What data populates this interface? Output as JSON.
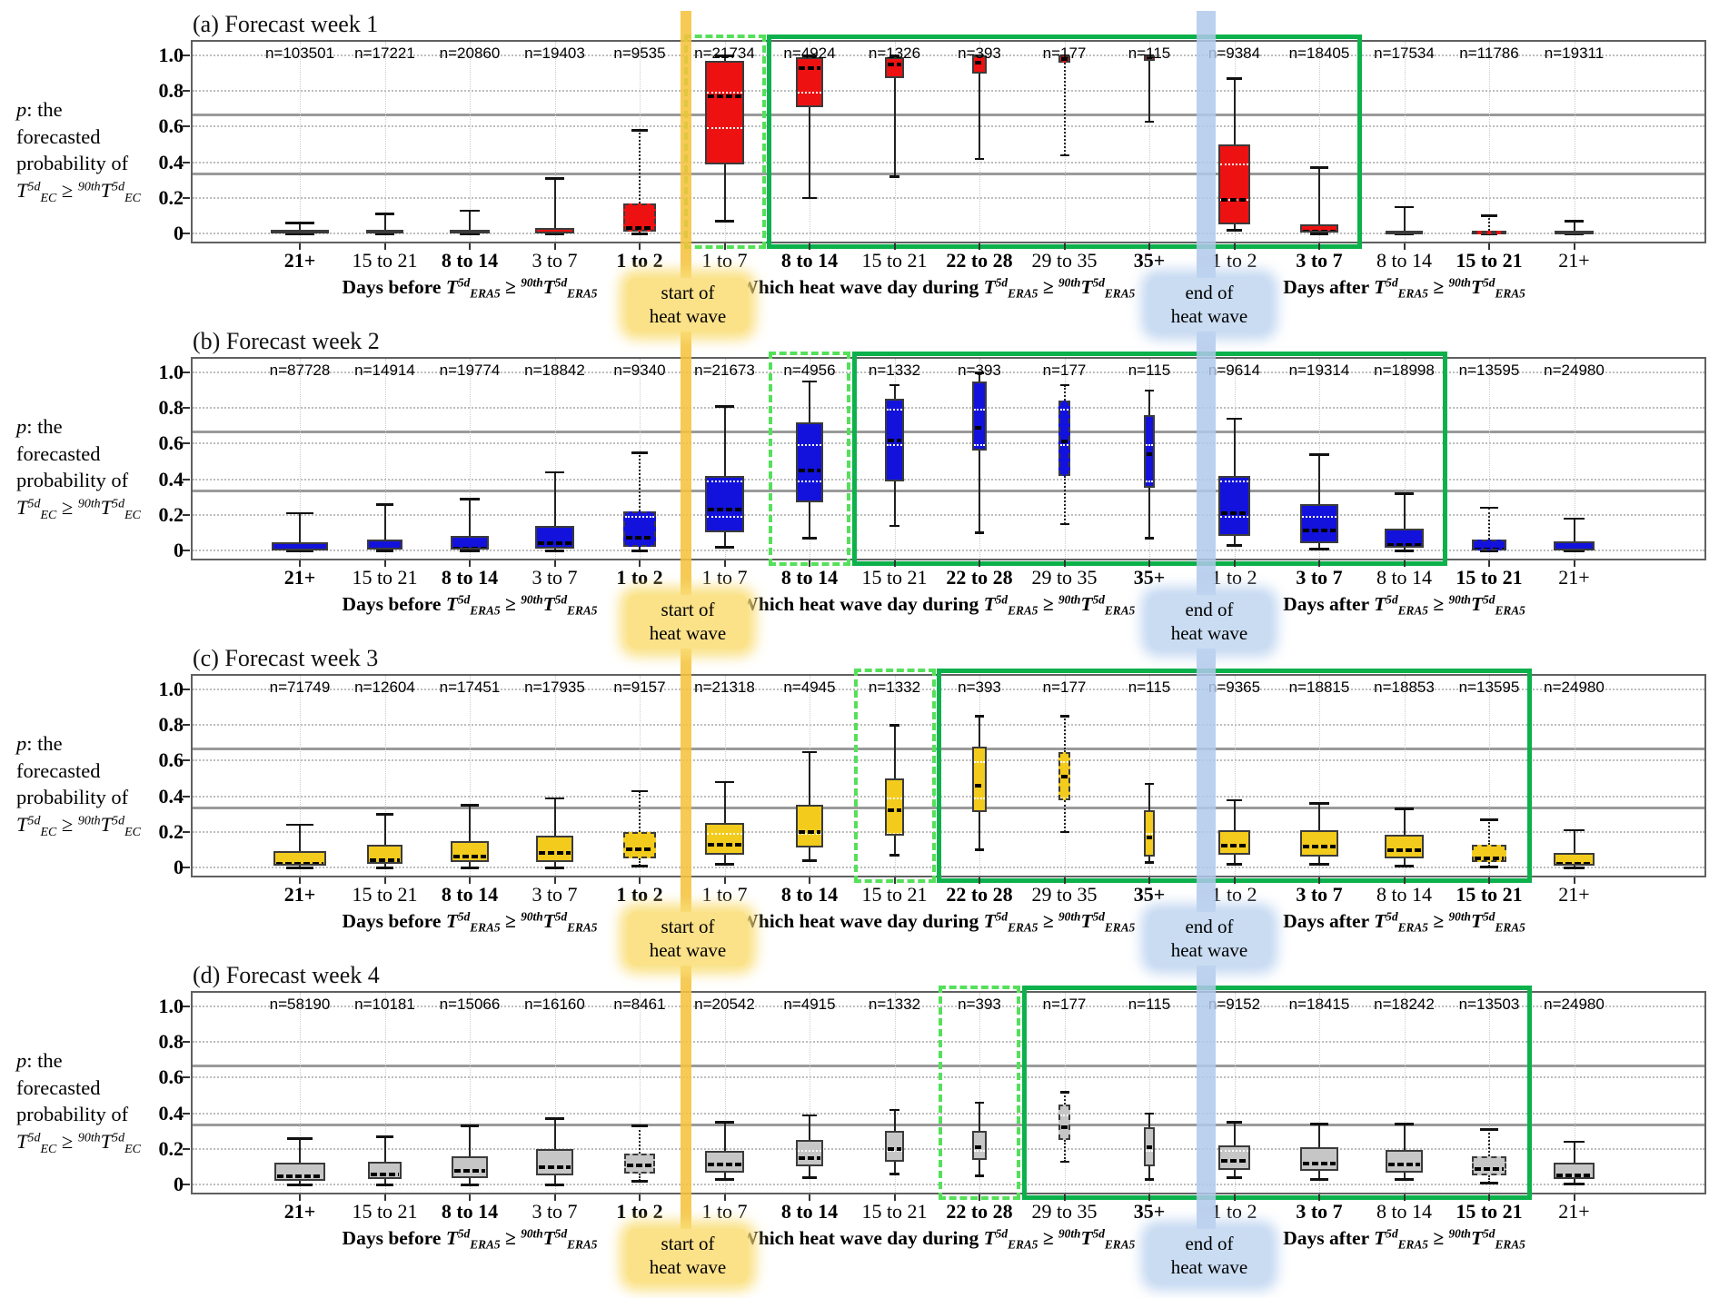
{
  "figure": {
    "n_prefix": "n=",
    "categories": [
      "21+",
      "15 to 21",
      "8 to 14",
      "3 to 7",
      "1 to 2",
      "1 to 7",
      "8 to 14",
      "15 to 21",
      "22 to 28",
      "29 to 35",
      "35+",
      "1 to 2",
      "3 to 7",
      "8 to 14",
      "15 to 21",
      "21+"
    ],
    "y_axis": {
      "ticks": [
        "1.0",
        "0.8",
        "0.6",
        "0.4",
        "0.2",
        "0"
      ],
      "tick_values": [
        1.0,
        0.8,
        0.6,
        0.4,
        0.2,
        0
      ],
      "label_lines": [
        [
          [
            "i",
            "p"
          ],
          [
            ": the"
          ]
        ],
        [
          [
            "forecasted"
          ]
        ],
        [
          [
            "probability of"
          ]
        ],
        [
          [
            "i",
            "T"
          ],
          [
            "sup",
            "5d"
          ],
          [
            "sub",
            "EC"
          ],
          [
            " ≥ "
          ],
          [
            "sup",
            "90th"
          ],
          [
            "i",
            "T"
          ],
          [
            "sup",
            "5d"
          ],
          [
            "sub",
            "EC"
          ]
        ]
      ]
    },
    "grid_values": [
      0,
      0.2,
      0.4,
      0.6,
      0.8,
      1.0
    ],
    "tercile_lines": [
      0.333,
      0.667
    ],
    "x_groups": [
      {
        "prefix": "Days before ",
        "cols": [
          0,
          4
        ]
      },
      {
        "prefix": "Which heat wave day during ",
        "cols": [
          5,
          10
        ]
      },
      {
        "prefix": "Days after ",
        "cols": [
          11,
          15
        ]
      }
    ],
    "formula_era5": [
      [
        "i",
        "T"
      ],
      [
        "sup",
        "5d"
      ],
      [
        "sub",
        "ERA5"
      ],
      [
        " ≥ "
      ],
      [
        "sup",
        "90th"
      ],
      [
        "i",
        "T"
      ],
      [
        "sup",
        "5d"
      ],
      [
        "sub",
        "ERA5"
      ]
    ],
    "bands": {
      "start": {
        "label_lines": [
          "start of",
          "heat wave"
        ],
        "band_color": "rgba(245,195,60,0.88)",
        "label_bg": "#FBE188",
        "glow": "rgba(250,222,120,0.9)"
      },
      "end": {
        "label_lines": [
          "end of",
          "heat wave"
        ],
        "band_color": "rgba(176,201,235,0.85)",
        "label_bg": "#C9DCF2",
        "glow": "rgba(190,212,240,0.9)"
      }
    },
    "colors": {
      "week1_box": "#EE1111",
      "week2_box": "#1212DC",
      "week3_box": "#F2CB1D",
      "week4_box": "#C6C6C6",
      "green_solid_window": "#0CB14B",
      "green_dashed_window": "#55E05A",
      "tercile_line": "#9a9a9a",
      "box_border": "#3b3b3b"
    }
  },
  "chart_data": [
    {
      "type": "box",
      "title": "(a) Forecast week 1",
      "box_color": "#EE1111",
      "ylim": [
        0,
        1
      ],
      "ylabel": "p: the forecasted probability of T5d_EC >= 90th T5d_EC",
      "n": [
        103501,
        17221,
        20860,
        19403,
        9535,
        21734,
        4924,
        1326,
        393,
        177,
        115,
        9384,
        18405,
        17534,
        11786,
        19311
      ],
      "boxes": [
        [
          0,
          0,
          0.01,
          0.02,
          0.06
        ],
        [
          0,
          0,
          0.01,
          0.02,
          0.11
        ],
        [
          0,
          0,
          0.01,
          0.02,
          0.13
        ],
        [
          0,
          0,
          0.01,
          0.03,
          0.31
        ],
        [
          0,
          0.01,
          0.04,
          0.17,
          0.58
        ],
        [
          0.07,
          0.39,
          0.78,
          0.97,
          1.0
        ],
        [
          0.2,
          0.71,
          0.94,
          0.99,
          1.0
        ],
        [
          0.32,
          0.87,
          0.96,
          0.99,
          1.0
        ],
        [
          0.42,
          0.9,
          0.97,
          1.0,
          1.0
        ],
        [
          0.44,
          0.96,
          0.99,
          1.0,
          1.0
        ],
        [
          0.63,
          0.97,
          0.99,
          1.0,
          1.0
        ],
        [
          0.02,
          0.05,
          0.2,
          0.5,
          0.87
        ],
        [
          0,
          0.005,
          0.02,
          0.05,
          0.37
        ],
        [
          0,
          0,
          0.005,
          0.015,
          0.15
        ],
        [
          0,
          0,
          0.005,
          0.015,
          0.1
        ],
        [
          0,
          0,
          0.005,
          0.015,
          0.07
        ]
      ],
      "dashed_window_col": 5,
      "solid_window_cols": [
        6,
        12
      ],
      "dotted_cols": [
        4,
        9,
        14
      ]
    },
    {
      "type": "box",
      "title": "(b) Forecast week 2",
      "box_color": "#1212DC",
      "ylim": [
        0,
        1
      ],
      "ylabel": "p: the forecasted probability of T5d_EC >= 90th T5d_EC",
      "n": [
        87728,
        14914,
        19774,
        18842,
        9340,
        21673,
        4956,
        1332,
        393,
        177,
        115,
        9614,
        19314,
        18998,
        13595,
        24980
      ],
      "boxes": [
        [
          0,
          0,
          0.01,
          0.045,
          0.21
        ],
        [
          0,
          0.005,
          0.015,
          0.06,
          0.26
        ],
        [
          0,
          0.005,
          0.02,
          0.08,
          0.29
        ],
        [
          0,
          0.01,
          0.05,
          0.14,
          0.44
        ],
        [
          0,
          0.02,
          0.08,
          0.22,
          0.55
        ],
        [
          0.02,
          0.1,
          0.24,
          0.42,
          0.81
        ],
        [
          0.07,
          0.27,
          0.46,
          0.72,
          0.95
        ],
        [
          0.14,
          0.39,
          0.63,
          0.85,
          0.93
        ],
        [
          0.1,
          0.56,
          0.7,
          0.95,
          1.0
        ],
        [
          0.15,
          0.42,
          0.62,
          0.84,
          0.93
        ],
        [
          0.07,
          0.35,
          0.55,
          0.76,
          0.9
        ],
        [
          0.03,
          0.08,
          0.22,
          0.42,
          0.74
        ],
        [
          0.01,
          0.04,
          0.12,
          0.26,
          0.54
        ],
        [
          0,
          0.015,
          0.04,
          0.12,
          0.32
        ],
        [
          0,
          0,
          0.015,
          0.06,
          0.24
        ],
        [
          0,
          0,
          0.01,
          0.05,
          0.18
        ]
      ],
      "dashed_window_col": 6,
      "solid_window_cols": [
        7,
        13
      ],
      "dotted_cols": [
        4,
        9,
        14
      ]
    },
    {
      "type": "box",
      "title": "(c) Forecast week 3",
      "box_color": "#F2CB1D",
      "ylim": [
        0,
        1
      ],
      "ylabel": "p: the forecasted probability of T5d_EC >= 90th T5d_EC",
      "n": [
        71749,
        12604,
        17451,
        17935,
        9157,
        21318,
        4945,
        1332,
        393,
        177,
        115,
        9365,
        18815,
        18853,
        13595,
        24980
      ],
      "boxes": [
        [
          0,
          0.01,
          0.03,
          0.09,
          0.24
        ],
        [
          0,
          0.02,
          0.05,
          0.13,
          0.3
        ],
        [
          0,
          0.03,
          0.07,
          0.15,
          0.35
        ],
        [
          0,
          0.03,
          0.09,
          0.18,
          0.39
        ],
        [
          0.01,
          0.05,
          0.11,
          0.2,
          0.43
        ],
        [
          0.02,
          0.07,
          0.14,
          0.25,
          0.48
        ],
        [
          0.04,
          0.11,
          0.21,
          0.35,
          0.65
        ],
        [
          0.07,
          0.18,
          0.33,
          0.5,
          0.8
        ],
        [
          0.1,
          0.31,
          0.47,
          0.68,
          0.85
        ],
        [
          0.2,
          0.38,
          0.52,
          0.65,
          0.85
        ],
        [
          0.03,
          0.06,
          0.18,
          0.32,
          0.47
        ],
        [
          0.02,
          0.07,
          0.135,
          0.21,
          0.38
        ],
        [
          0.02,
          0.06,
          0.13,
          0.21,
          0.36
        ],
        [
          0.01,
          0.05,
          0.105,
          0.185,
          0.33
        ],
        [
          0.005,
          0.03,
          0.06,
          0.13,
          0.27
        ],
        [
          0,
          0.01,
          0.03,
          0.08,
          0.21
        ]
      ],
      "dashed_window_col": 7,
      "solid_window_cols": [
        8,
        14
      ],
      "dotted_cols": [
        4,
        9,
        14
      ]
    },
    {
      "type": "box",
      "title": "(d) Forecast week 4",
      "box_color": "#C6C6C6",
      "ylim": [
        0,
        1
      ],
      "ylabel": "p: the forecasted probability of T5d_EC >= 90th T5d_EC",
      "n": [
        58190,
        10181,
        15066,
        16160,
        8461,
        20542,
        4915,
        1332,
        393,
        177,
        115,
        9152,
        18415,
        18242,
        13503,
        24980
      ],
      "boxes": [
        [
          0,
          0.02,
          0.055,
          0.12,
          0.26
        ],
        [
          0,
          0.03,
          0.065,
          0.13,
          0.27
        ],
        [
          0,
          0.035,
          0.085,
          0.16,
          0.33
        ],
        [
          0,
          0.05,
          0.105,
          0.2,
          0.37
        ],
        [
          0.02,
          0.06,
          0.115,
          0.175,
          0.33
        ],
        [
          0.03,
          0.065,
          0.12,
          0.19,
          0.35
        ],
        [
          0.04,
          0.1,
          0.16,
          0.25,
          0.39
        ],
        [
          0.06,
          0.13,
          0.21,
          0.3,
          0.42
        ],
        [
          0.05,
          0.14,
          0.22,
          0.3,
          0.46
        ],
        [
          0.13,
          0.25,
          0.33,
          0.45,
          0.52
        ],
        [
          0.03,
          0.1,
          0.22,
          0.32,
          0.4
        ],
        [
          0.04,
          0.08,
          0.145,
          0.22,
          0.35
        ],
        [
          0.03,
          0.075,
          0.13,
          0.21,
          0.34
        ],
        [
          0.03,
          0.065,
          0.12,
          0.195,
          0.34
        ],
        [
          0.01,
          0.05,
          0.095,
          0.16,
          0.31
        ],
        [
          0.005,
          0.03,
          0.06,
          0.12,
          0.24
        ]
      ],
      "dashed_window_col": 8,
      "solid_window_cols": [
        9,
        14
      ],
      "dotted_cols": [
        4,
        9,
        14
      ]
    }
  ]
}
